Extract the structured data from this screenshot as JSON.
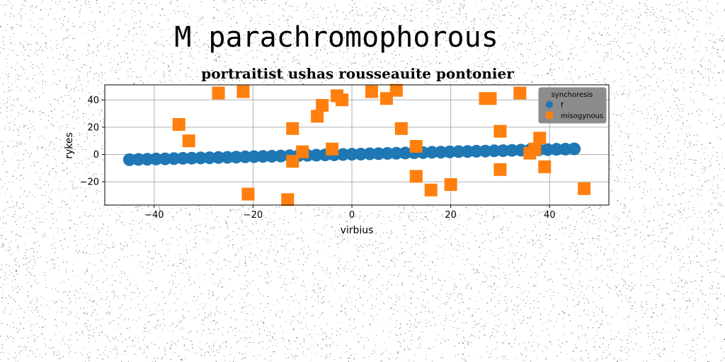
{
  "figure": {
    "suptitle": "M parachromophorous"
  },
  "chart_data": {
    "type": "scatter",
    "title": "portraitist ushas rousseauite pontonier",
    "xlabel": "virbius",
    "ylabel": "rykes",
    "xlim": [
      -50,
      52
    ],
    "ylim": [
      -37,
      51
    ],
    "xticks": [
      -40,
      -20,
      0,
      20,
      40
    ],
    "yticks": [
      -20,
      0,
      20,
      40
    ],
    "grid": true,
    "legend": {
      "title": "synchoresis",
      "placement": "top-right"
    },
    "series": [
      {
        "name": "f",
        "color": "#1f77b4",
        "marker": "circle",
        "x": [
          -45,
          -43.2,
          -41.4,
          -39.6,
          -37.8,
          -36,
          -34.2,
          -32.4,
          -30.6,
          -28.8,
          -27,
          -25.2,
          -23.4,
          -21.6,
          -19.8,
          -18,
          -16.2,
          -14.4,
          -12.6,
          -10.8,
          -9,
          -7.2,
          -5.4,
          -3.6,
          -1.8,
          0,
          1.8,
          3.6,
          5.4,
          7.2,
          9,
          10.8,
          12.6,
          14.4,
          16.2,
          18,
          19.8,
          21.6,
          23.4,
          25.2,
          27,
          28.8,
          30.6,
          32.4,
          34.2,
          36,
          37.8,
          39.6,
          41.4,
          43.2,
          45
        ],
        "y": [
          -3.8,
          -3.6,
          -3.5,
          -3.3,
          -3.2,
          -3,
          -2.8,
          -2.7,
          -2.5,
          -2.4,
          -2.2,
          -2.1,
          -1.9,
          -1.7,
          -1.6,
          -1.4,
          -1.3,
          -1.1,
          -0.9,
          -0.8,
          -0.6,
          -0.5,
          -0.3,
          -0.2,
          0,
          0.2,
          0.3,
          0.5,
          0.6,
          0.8,
          0.9,
          1.1,
          1.3,
          1.4,
          1.6,
          1.7,
          1.9,
          2.1,
          2.2,
          2.4,
          2.5,
          2.7,
          2.8,
          3,
          3.2,
          3.3,
          3.5,
          3.6,
          3.8,
          3.9,
          4.1
        ]
      },
      {
        "name": "misogynous",
        "color": "#ff7f0e",
        "marker": "square",
        "x": [
          -35,
          -33,
          -27,
          -22,
          -21,
          -13,
          -12,
          -12,
          -10,
          -7,
          -6,
          -4,
          -3,
          -2,
          4,
          7,
          9,
          10,
          13,
          13,
          16,
          20,
          27,
          28,
          30,
          30,
          34,
          36,
          37,
          38,
          39,
          47
        ],
        "y": [
          22,
          10,
          45,
          46,
          -29,
          -33,
          19,
          -5,
          2,
          28,
          36,
          4,
          43,
          40,
          46,
          41,
          47,
          19,
          6,
          -16,
          -26,
          -22,
          41,
          41,
          17,
          -11,
          45,
          1,
          4,
          12,
          -9,
          -25
        ]
      }
    ]
  }
}
